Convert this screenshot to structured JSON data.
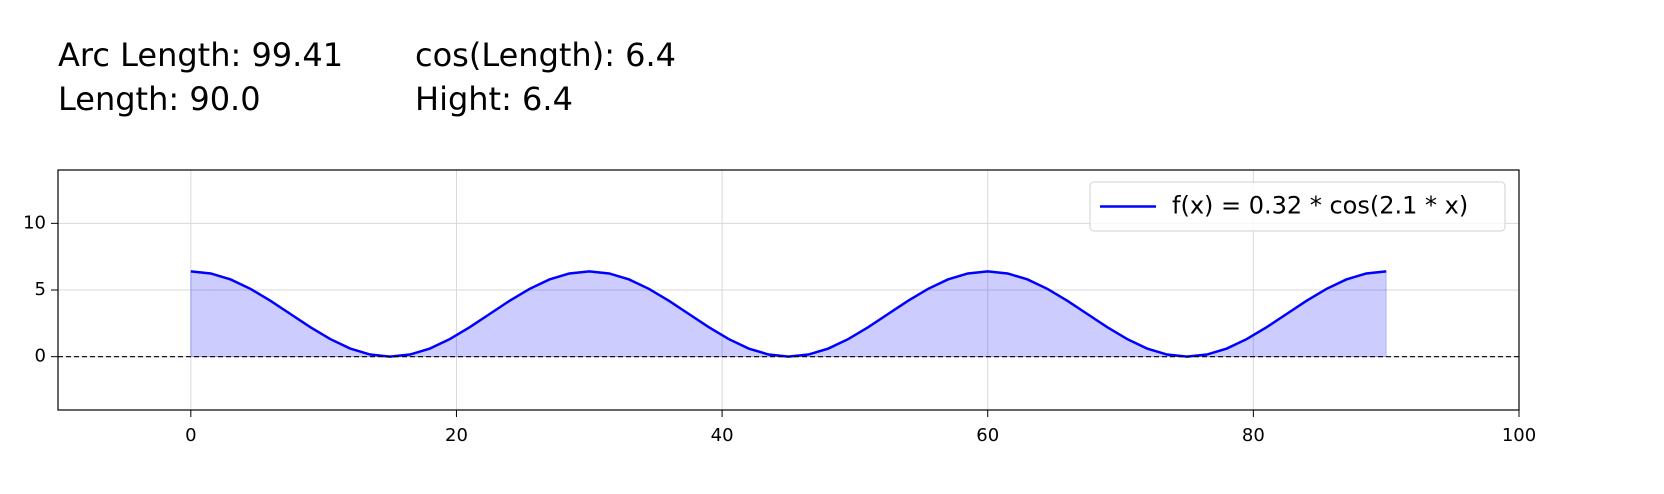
{
  "chart_data": {
    "type": "line",
    "annotations": [
      "Arc Length: 99.41",
      "cos(Length): 6.4",
      "Length: 90.0",
      "Hight: 6.4"
    ],
    "x": [
      0,
      1.5,
      3,
      4.5,
      6,
      7.5,
      9,
      10.5,
      12,
      13.5,
      15,
      16.5,
      18,
      19.5,
      21,
      22.5,
      24,
      25.5,
      27,
      28.5,
      30,
      31.5,
      33,
      34.5,
      36,
      37.5,
      39,
      40.5,
      42,
      43.5,
      45,
      46.5,
      48,
      49.5,
      51,
      52.5,
      54,
      55.5,
      57,
      58.5,
      60,
      61.5,
      63,
      64.5,
      66,
      67.5,
      69,
      70.5,
      72,
      73.5,
      75,
      76.5,
      78,
      79.5,
      81,
      82.5,
      84,
      85.5,
      87,
      88.5,
      90
    ],
    "series": [
      {
        "name": "f(x) = 0.32 * cos(2.1 * x)",
        "color": "#0000ff",
        "fill": true,
        "values": [
          6.4,
          6.24,
          5.79,
          5.08,
          4.19,
          3.2,
          2.21,
          1.32,
          0.61,
          0.16,
          0,
          0.16,
          0.61,
          1.32,
          2.21,
          3.2,
          4.19,
          5.08,
          5.79,
          6.24,
          6.4,
          6.24,
          5.79,
          5.08,
          4.19,
          3.2,
          2.21,
          1.32,
          0.61,
          0.16,
          0,
          0.16,
          0.61,
          1.32,
          2.21,
          3.2,
          4.19,
          5.08,
          5.79,
          6.24,
          6.4,
          6.24,
          5.79,
          5.08,
          4.19,
          3.2,
          2.21,
          1.32,
          0.61,
          0.16,
          0,
          0.16,
          0.61,
          1.32,
          2.21,
          3.2,
          4.19,
          5.08,
          5.79,
          6.24,
          6.4
        ]
      }
    ],
    "reference_line": 0,
    "xlim": [
      -10,
      100
    ],
    "xticks": [
      0,
      20,
      40,
      60,
      80,
      100
    ],
    "ylim": [
      -4,
      14
    ],
    "yticks": [
      0,
      5,
      10
    ],
    "grid": true,
    "legend": "upper right"
  }
}
